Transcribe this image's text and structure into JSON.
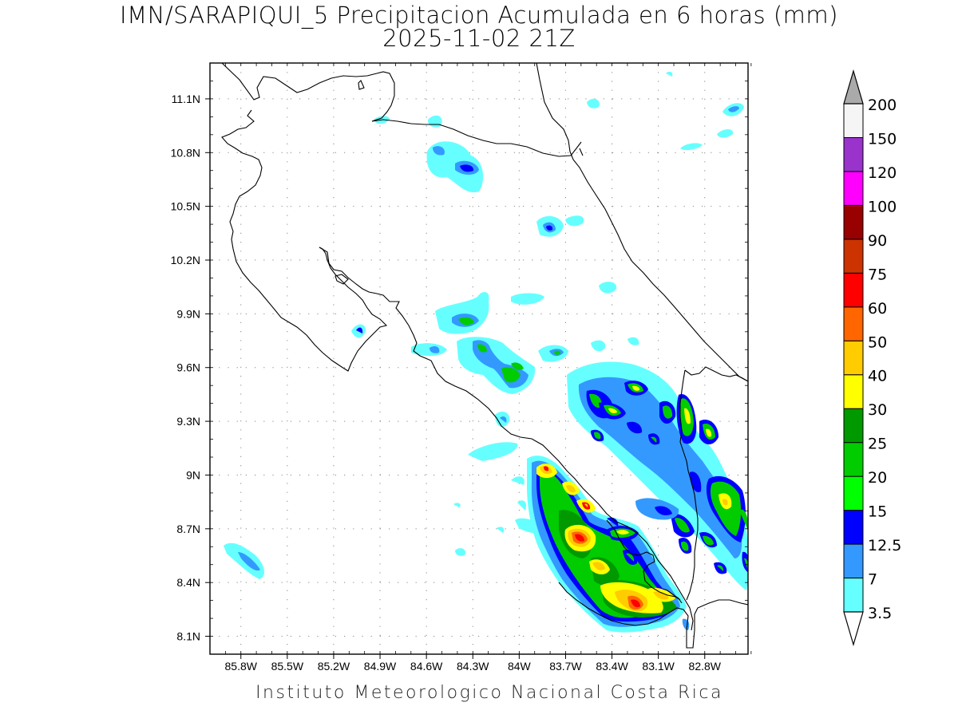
{
  "title": {
    "line1": "IMN/SARAPIQUI_5 Precipitacion Acumulada en 6 horas (mm)",
    "line2": "2025-11-02 21Z"
  },
  "credit": "Instituto Meteorologico Nacional Costa Rica",
  "map": {
    "lon_range": [
      -86.0,
      -82.52
    ],
    "lat_range": [
      8.0,
      11.3
    ],
    "lat_ticks": [
      {
        "value": 11.1,
        "label": "11.1N"
      },
      {
        "value": 10.8,
        "label": "10.8N"
      },
      {
        "value": 10.5,
        "label": "10.5N"
      },
      {
        "value": 10.2,
        "label": "10.2N"
      },
      {
        "value": 9.9,
        "label": "9.9N"
      },
      {
        "value": 9.6,
        "label": "9.6N"
      },
      {
        "value": 9.3,
        "label": "9.3N"
      },
      {
        "value": 9.0,
        "label": "9N"
      },
      {
        "value": 8.7,
        "label": "8.7N"
      },
      {
        "value": 8.4,
        "label": "8.4N"
      },
      {
        "value": 8.1,
        "label": "8.1N"
      }
    ],
    "lon_ticks": [
      {
        "value": -85.8,
        "label": "85.8W"
      },
      {
        "value": -85.5,
        "label": "85.5W"
      },
      {
        "value": -85.2,
        "label": "85.2W"
      },
      {
        "value": -84.9,
        "label": "84.9W"
      },
      {
        "value": -84.6,
        "label": "84.6W"
      },
      {
        "value": -84.3,
        "label": "84.3W"
      },
      {
        "value": -84.0,
        "label": "84W"
      },
      {
        "value": -83.7,
        "label": "83.7W"
      },
      {
        "value": -83.4,
        "label": "83.4W"
      },
      {
        "value": -83.1,
        "label": "83.1W"
      },
      {
        "value": -82.8,
        "label": "82.8W"
      }
    ],
    "grid": "dotted"
  },
  "colorbar": {
    "levels": [
      {
        "label": "3.5",
        "color": "#66ffff"
      },
      {
        "label": "7",
        "color": "#3399ff"
      },
      {
        "label": "12.5",
        "color": "#0000ff"
      },
      {
        "label": "15",
        "color": "#00ff00"
      },
      {
        "label": "20",
        "color": "#00cc00"
      },
      {
        "label": "25",
        "color": "#009900"
      },
      {
        "label": "30",
        "color": "#ffff00"
      },
      {
        "label": "40",
        "color": "#ffcc00"
      },
      {
        "label": "50",
        "color": "#ff6600"
      },
      {
        "label": "60",
        "color": "#ff0000"
      },
      {
        "label": "75",
        "color": "#cc3300"
      },
      {
        "label": "90",
        "color": "#990000"
      },
      {
        "label": "100",
        "color": "#ff00ff"
      },
      {
        "label": "120",
        "color": "#9933cc"
      },
      {
        "label": "150",
        "color": "#f5f5f5"
      },
      {
        "label": "200",
        "color": "#aaaaaa"
      }
    ]
  }
}
